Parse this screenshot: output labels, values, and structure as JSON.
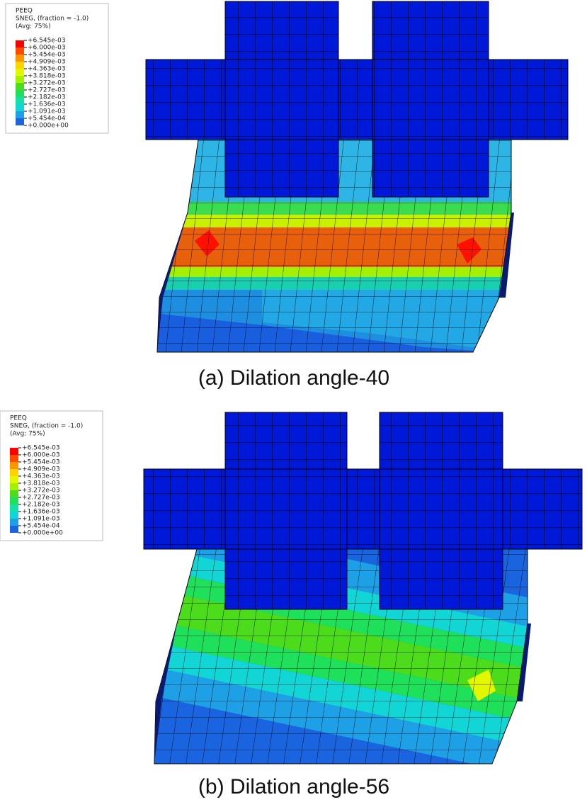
{
  "panels": [
    {
      "legend": {
        "title": "PEEQ",
        "subtitle": "SNEG, (fraction = -1.0)",
        "avg": "(Avg: 75%)",
        "labels": [
          "+6.545e-03",
          "+6.000e-03",
          "+5.454e-03",
          "+4.909e-03",
          "+4.363e-03",
          "+3.818e-03",
          "+3.272e-03",
          "+2.727e-03",
          "+2.182e-03",
          "+1.636e-03",
          "+1.091e-03",
          "+5.454e-04",
          "+0.000e+00"
        ],
        "colors": [
          "#ff0000",
          "#ff4a00",
          "#ff9400",
          "#ffd200",
          "#e3f700",
          "#a3f000",
          "#4cdc1c",
          "#1ee05a",
          "#15e0a6",
          "#12d6d6",
          "#1ea0e6",
          "#1a64e0",
          "#0018d8"
        ]
      },
      "caption": "(a) Dilation angle-40"
    },
    {
      "legend": {
        "title": "PEEQ",
        "subtitle": "SNEG, (fraction = -1.0)",
        "avg": "(Avg: 75%)",
        "labels": [
          "+6.545e-03",
          "+6.000e-03",
          "+5.454e-03",
          "+4.909e-03",
          "+4.363e-03",
          "+3.818e-03",
          "+3.272e-03",
          "+2.727e-03",
          "+2.182e-03",
          "+1.636e-03",
          "+1.091e-03",
          "+5.454e-04",
          "+0.000e+00"
        ],
        "colors": [
          "#ff0000",
          "#ff4a00",
          "#ff9400",
          "#ffd200",
          "#e3f700",
          "#a3f000",
          "#4cdc1c",
          "#1ee05a",
          "#15e0a6",
          "#12d6d6",
          "#1ea0e6",
          "#1a64e0",
          "#0018d8"
        ]
      },
      "caption": "(b) Dilation angle-56"
    }
  ]
}
